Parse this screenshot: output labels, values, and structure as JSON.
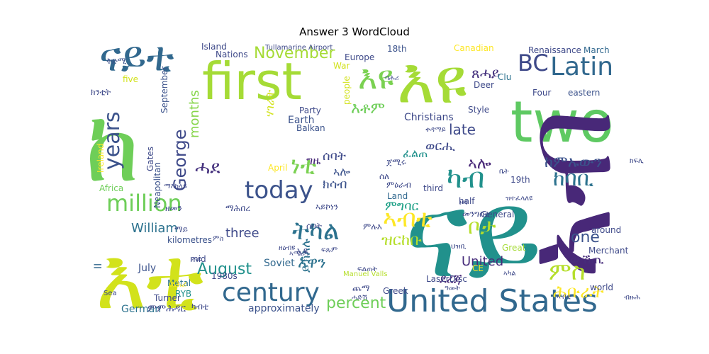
{
  "chart_data": {
    "type": "wordcloud",
    "title": "Answer 3 WordCloud",
    "colormap": "viridis",
    "background": "#ffffff",
    "words": [
      {
        "text": "ናይ",
        "color": "#21918c"
      },
      {
        "text": "ከ",
        "color": "#6ece58"
      },
      {
        "text": "first",
        "color": "#a5db36"
      },
      {
        "text": "እዩ",
        "color": "#a5db36"
      },
      {
        "text": "two",
        "color": "#5ec962"
      },
      {
        "text": "ኣብ",
        "color": "#482878"
      },
      {
        "text": "እቲ",
        "color": "#d2e21b"
      },
      {
        "text": "ናይቲ",
        "color": "#31688e"
      },
      {
        "text": "United States",
        "color": "#31688e"
      },
      {
        "text": "century",
        "color": "#31688e"
      },
      {
        "text": "today",
        "color": "#3b528b"
      },
      {
        "text": "million",
        "color": "#6ece58"
      },
      {
        "text": "እዩ",
        "color": "#7ad151"
      },
      {
        "text": "ትካል",
        "color": "#2c728e"
      },
      {
        "text": "Latin",
        "color": "#31688e"
      },
      {
        "text": "BC",
        "color": "#3e4989"
      },
      {
        "text": "years",
        "color": "#3b528b"
      },
      {
        "text": "George",
        "color": "#3e4989"
      },
      {
        "text": "November",
        "color": "#a5db36"
      },
      {
        "text": "ካብ",
        "color": "#21918c"
      },
      {
        "text": "August",
        "color": "#21918c"
      },
      {
        "text": "ምስ",
        "color": "#b5de2b"
      },
      {
        "text": "ቦታ",
        "color": "#b5de2b"
      },
      {
        "text": "ኣብቲ",
        "color": "#fde725"
      },
      {
        "text": "ኣሎ",
        "color": "#482878"
      },
      {
        "text": "ሓደ",
        "color": "#46327e"
      },
      {
        "text": "late",
        "color": "#3e4989"
      },
      {
        "text": "ነቲ",
        "color": "#7ad151"
      },
      {
        "text": "ከባቢ",
        "color": "#2c728e"
      },
      {
        "text": "ከምኡውን",
        "color": "#3b528b"
      },
      {
        "text": "one",
        "color": "#3b528b"
      },
      {
        "text": "percent",
        "color": "#6ece58"
      },
      {
        "text": "months",
        "color": "#86d549"
      },
      {
        "text": "William",
        "color": "#2c728e"
      },
      {
        "text": "three",
        "color": "#3e4989"
      },
      {
        "text": "ወርሒ",
        "color": "#3e4989"
      },
      {
        "text": "ሰባት",
        "color": "#3e4989"
      },
      {
        "text": "ክሳብ",
        "color": "#3b528b"
      },
      {
        "text": "ምግባር",
        "color": "#1fa187"
      },
      {
        "text": "ዝርከቡ",
        "color": "#b5de2b"
      },
      {
        "text": "እዋን",
        "color": "#2c728e"
      },
      {
        "text": "ይኽእሉ",
        "color": "#2c728e"
      },
      {
        "text": "ሕቡራት",
        "color": "#fde725"
      },
      {
        "text": "ደረጃ",
        "color": "#482878"
      },
      {
        "text": "ውሽጢ",
        "color": "#472d7b"
      },
      {
        "text": "ሃገራት",
        "color": "#d2e21b"
      },
      {
        "text": "እቶም",
        "color": "#6ece58"
      },
      {
        "text": "ኣሎ",
        "color": "#3b528b"
      },
      {
        "text": "ግዜ",
        "color": "#482878"
      },
      {
        "text": "ጸሓይ",
        "color": "#46327e"
      },
      {
        "text": "ፈልጠ",
        "color": "#21918c"
      },
      {
        "text": "Christians",
        "color": "#3e4989"
      },
      {
        "text": "Earth",
        "color": "#3b528b"
      },
      {
        "text": "United",
        "color": "#472d7b"
      },
      {
        "text": "Soviet",
        "color": "#31688e"
      },
      {
        "text": "approximately",
        "color": "#3b528b"
      },
      {
        "text": "German",
        "color": "#2c728e"
      },
      {
        "text": "Gates",
        "color": "#3e4989"
      },
      {
        "text": "September",
        "color": "#3b528b"
      },
      {
        "text": "Neapolitan",
        "color": "#3b528b"
      },
      {
        "text": "Africa",
        "color": "#6ece58"
      },
      {
        "text": "Ireland",
        "color": "#fde725"
      },
      {
        "text": "kilometres",
        "color": "#3b528b"
      },
      {
        "text": "July",
        "color": "#3b528b"
      },
      {
        "text": "Turner",
        "color": "#3e4989"
      },
      {
        "text": "Metal",
        "color": "#2c728e"
      },
      {
        "text": "1980s",
        "color": "#3e4989"
      },
      {
        "text": "RYB",
        "color": "#21918c"
      },
      {
        "text": "II",
        "color": "#31688e"
      },
      {
        "text": "Greek",
        "color": "#3e4989"
      },
      {
        "text": "Balkan",
        "color": "#3b528b"
      },
      {
        "text": "Party",
        "color": "#3e4989"
      },
      {
        "text": "Europe",
        "color": "#3e4989"
      },
      {
        "text": "War",
        "color": "#d2e21b"
      },
      {
        "text": "Nations",
        "color": "#3e4989"
      },
      {
        "text": "Island",
        "color": "#3e4989"
      },
      {
        "text": "Canadian",
        "color": "#fde725"
      },
      {
        "text": "18th",
        "color": "#3b528b"
      },
      {
        "text": "Deer",
        "color": "#3e4989"
      },
      {
        "text": "Clu",
        "color": "#2c728e"
      },
      {
        "text": "Style",
        "color": "#3e4989"
      },
      {
        "text": "Four",
        "color": "#3e4989"
      },
      {
        "text": "eastern",
        "color": "#3b528b"
      },
      {
        "text": "Renaissance",
        "color": "#3e4989"
      },
      {
        "text": "March",
        "color": "#31688e"
      },
      {
        "text": "Merchant",
        "color": "#3e4989"
      },
      {
        "text": "19th",
        "color": "#3e4989"
      },
      {
        "text": "third",
        "color": "#3e4989"
      },
      {
        "text": "half",
        "color": "#3e4989"
      },
      {
        "text": "Land",
        "color": "#31688e"
      },
      {
        "text": "April",
        "color": "#fde725"
      },
      {
        "text": "General",
        "color": "#3e4989"
      },
      {
        "text": "around",
        "color": "#3e4989"
      },
      {
        "text": "Great",
        "color": "#a5db36"
      },
      {
        "text": "world",
        "color": "#3e4989"
      },
      {
        "text": "LaserDisc",
        "color": "#3e4989"
      },
      {
        "text": "CE",
        "color": "#fde725"
      },
      {
        "text": "Manuel Valls",
        "color": "#b5de2b"
      },
      {
        "text": "Tullamarine Airport",
        "color": "#3e4989"
      },
      {
        "text": "mid",
        "color": "#3e4989"
      },
      {
        "text": "Sea",
        "color": "#3e4989"
      },
      {
        "text": "people",
        "color": "#d2e21b"
      },
      {
        "text": "five",
        "color": "#d2e21b"
      },
      {
        "text": "ቅድሚ",
        "color": "#3b528b"
      },
      {
        "text": "ክንቲት",
        "color": "#3e4989"
      },
      {
        "text": "ማሕበረ",
        "color": "#3e4989"
      },
      {
        "text": "ምስ",
        "color": "#3e4989"
      },
      {
        "text": "ሓደ",
        "color": "#3e4989"
      },
      {
        "text": "ዘመን",
        "color": "#3e4989"
      },
      {
        "text": "ማእከላይ",
        "color": "#3e4989"
      },
      {
        "text": "ማይ",
        "color": "#3e4989"
      },
      {
        "text": "ካብቲ",
        "color": "#3e4989"
      },
      {
        "text": "ምምሕዳር",
        "color": "#3e4989"
      },
      {
        "text": "ደሕሪ",
        "color": "#fde725"
      },
      {
        "text": "ጨማ",
        "color": "#3e4989"
      },
      {
        "text": "ኣሜሪካ",
        "color": "#3e4989"
      },
      {
        "text": "ዘዕብዩ",
        "color": "#3e4989"
      },
      {
        "text": "ፍልጠት",
        "color": "#3e4989"
      },
      {
        "text": "ባሕሪ",
        "color": "#3e4989"
      },
      {
        "text": "ኢዩ",
        "color": "#3e4989"
      },
      {
        "text": "ሰለ",
        "color": "#3e4989"
      },
      {
        "text": "ሰባት",
        "color": "#3e4989"
      },
      {
        "text": "ኣይኮነን",
        "color": "#3e4989"
      },
      {
        "text": "ምሉእ",
        "color": "#3e4989"
      },
      {
        "text": "ሓድሽ",
        "color": "#3e4989"
      },
      {
        "text": "ዓመት",
        "color": "#3e4989"
      },
      {
        "text": "ኣካል",
        "color": "#3e4989"
      },
      {
        "text": "ቀዳማይ",
        "color": "#3e4989"
      },
      {
        "text": "ምዕራብ",
        "color": "#3e4989"
      },
      {
        "text": "ጀሚሩ",
        "color": "#3e4989"
      },
      {
        "text": "ፍጹም",
        "color": "#3e4989"
      },
      {
        "text": "ህዝቢ",
        "color": "#3e4989"
      },
      {
        "text": "መንግስቲ",
        "color": "#3e4989"
      },
      {
        "text": "ዝተፈላለዩ",
        "color": "#3e4989"
      },
      {
        "text": "ቤት",
        "color": "#3e4989"
      },
      {
        "text": "ዞባ",
        "color": "#3e4989"
      },
      {
        "text": "ኣብቲ",
        "color": "#3e4989"
      },
      {
        "text": "ብዙሕ",
        "color": "#3e4989"
      },
      {
        "text": "ክፍሊ",
        "color": "#3e4989"
      },
      {
        "text": "ገዛ",
        "color": "#3e4989"
      },
      {
        "text": "ሓጺር",
        "color": "#3e4989"
      }
    ]
  }
}
